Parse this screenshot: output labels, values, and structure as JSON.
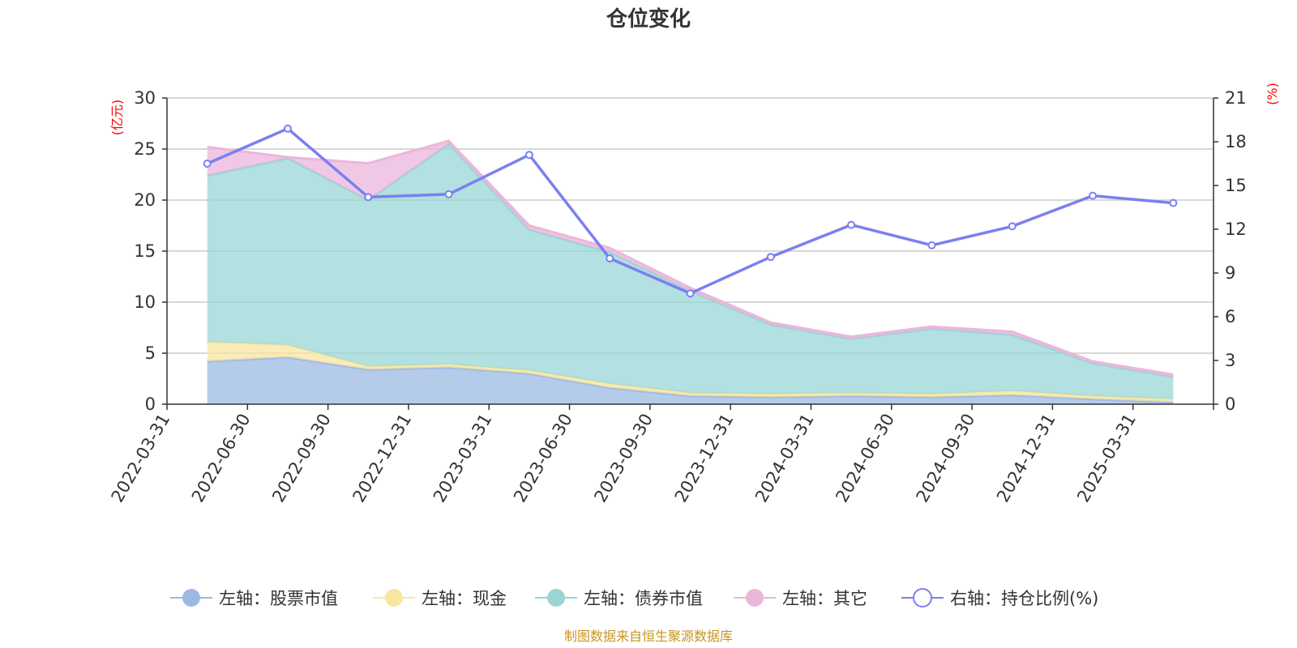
{
  "chart_data": {
    "type": "area",
    "title": "仓位变化",
    "left_unit": "(亿元)",
    "right_unit": "(%)",
    "left_ylim": [
      0,
      30
    ],
    "left_ticks": [
      "0",
      "5",
      "10",
      "15",
      "20",
      "25",
      "30"
    ],
    "right_ylim": [
      0,
      21
    ],
    "right_ticks": [
      "0",
      "3",
      "6",
      "9",
      "12",
      "15",
      "18",
      "21"
    ],
    "grid": true,
    "legend_position": "bottom",
    "categories": [
      "2022-03-31",
      "2022-06-30",
      "2022-09-30",
      "2022-12-31",
      "2023-03-31",
      "2023-06-30",
      "2023-09-30",
      "2023-12-31",
      "2024-03-31",
      "2024-06-30",
      "2024-09-30",
      "2024-12-31",
      "2025-03-31"
    ],
    "series": [
      {
        "name": "左轴：股票市值",
        "axis": "left",
        "type": "stacked-area",
        "color": "#9cb9e3",
        "values": [
          4.2,
          4.6,
          3.4,
          3.6,
          3.0,
          1.6,
          0.8,
          0.7,
          0.8,
          0.7,
          0.9,
          0.5,
          0.2
        ]
      },
      {
        "name": "左轴：现金",
        "axis": "left",
        "type": "stacked-area",
        "color": "#f8e6a0",
        "values": [
          1.9,
          1.2,
          0.3,
          0.3,
          0.3,
          0.4,
          0.3,
          0.3,
          0.3,
          0.3,
          0.4,
          0.3,
          0.3
        ]
      },
      {
        "name": "左轴：债券市值",
        "axis": "left",
        "type": "stacked-area",
        "color": "#99d5d5",
        "values": [
          16.3,
          18.3,
          16.3,
          21.6,
          13.8,
          12.9,
          10.0,
          6.8,
          5.3,
          6.4,
          5.5,
          3.2,
          2.2
        ]
      },
      {
        "name": "左轴：其它",
        "axis": "left",
        "type": "stacked-area",
        "color": "#ebb6dc",
        "values": [
          2.8,
          0.1,
          3.6,
          0.3,
          0.4,
          0.4,
          0.3,
          0.2,
          0.2,
          0.2,
          0.3,
          0.2,
          0.2
        ]
      },
      {
        "name": "右轴：持仓比例(%)",
        "axis": "right",
        "type": "line",
        "color": "#7b7ff2",
        "values": [
          16.5,
          18.9,
          14.2,
          14.4,
          17.1,
          10.0,
          7.6,
          10.1,
          12.3,
          10.9,
          12.2,
          14.3,
          13.8
        ]
      }
    ]
  },
  "source_note": "制图数据来自恒生聚源数据库"
}
